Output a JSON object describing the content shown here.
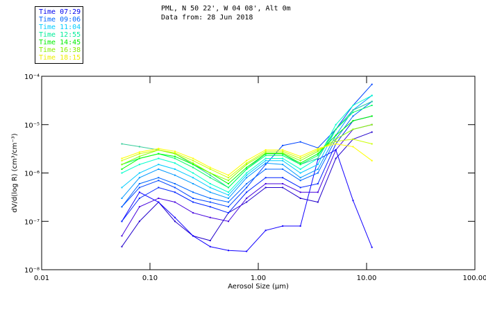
{
  "chart_data": {
    "type": "line",
    "title": [
      "PML, N 50 22', W 04 08', Alt 0m",
      "Data from: 28 Jun 2018"
    ],
    "xlabel": "Aerosol Size (µm)",
    "ylabel": "dV/d(log R) (cm³/cm⁻³)",
    "xscale": "log",
    "yscale": "log",
    "xlim": [
      0.01,
      100
    ],
    "ylim": [
      1e-08,
      0.0001
    ],
    "x_tick_labels": [
      "0.01",
      "0.10",
      "1.00",
      "10.00",
      "100.00"
    ],
    "x_ticks": [
      0.01,
      0.1,
      1,
      10,
      100
    ],
    "y_tick_labels": [
      "10⁻⁴",
      "10⁻⁵",
      "10⁻⁶",
      "10⁻⁷",
      "10⁻⁸"
    ],
    "y_ticks": [
      0.0001,
      1e-05,
      1e-06,
      1e-07,
      1e-08
    ],
    "legend": [
      {
        "label": "Time 07:29",
        "color": "#0000ee"
      },
      {
        "label": "Time 09:06",
        "color": "#0066ff"
      },
      {
        "label": "Time 11:04",
        "color": "#00ccff"
      },
      {
        "label": "Time 12:55",
        "color": "#00ee99"
      },
      {
        "label": "Time 14:45",
        "color": "#00ee00"
      },
      {
        "label": "Time 16:38",
        "color": "#88ee00"
      },
      {
        "label": "Time 18:15",
        "color": "#eeee00"
      }
    ],
    "legend_position": "top-left outside",
    "x": [
      0.055,
      0.08,
      0.12,
      0.17,
      0.25,
      0.36,
      0.53,
      0.78,
      1.17,
      1.68,
      2.45,
      3.55,
      5.2,
      7.5,
      11.2
    ],
    "series": [
      {
        "color": "#2200cc",
        "values": [
          3e-08,
          1e-07,
          2.5e-07,
          1e-07,
          5e-08,
          4e-08,
          1.5e-07,
          2.5e-07,
          5e-07,
          5e-07,
          3e-07,
          2.5e-07,
          2e-06,
          5e-06,
          7e-06
        ]
      },
      {
        "color": "#4400dd",
        "values": [
          5e-08,
          2e-07,
          3e-07,
          2.5e-07,
          1.5e-07,
          1.2e-07,
          1e-07,
          3e-07,
          6e-07,
          6e-07,
          4e-07,
          4e-07,
          3e-06,
          8e-06,
          1e-05
        ]
      },
      {
        "color": "#1100ff",
        "values": [
          1e-07,
          4e-07,
          2.5e-07,
          1.2e-07,
          5e-08,
          3e-08,
          2.5e-08,
          2.4e-08,
          6.5e-08,
          8e-08,
          8e-08,
          1.9e-06,
          3e-06,
          2.7e-07,
          2.9e-08
        ]
      },
      {
        "color": "#0022ff",
        "values": [
          1e-07,
          3e-07,
          5e-07,
          4e-07,
          2.5e-07,
          2e-07,
          1.5e-07,
          4e-07,
          8e-07,
          8e-07,
          5e-07,
          6e-07,
          4e-06,
          1.2e-05,
          1.5e-05
        ]
      },
      {
        "color": "#0044ff",
        "values": [
          2e-07,
          5e-07,
          7e-07,
          5e-07,
          3e-07,
          2.5e-07,
          2e-07,
          5e-07,
          1.5e-06,
          3.7e-06,
          4.4e-06,
          3.3e-06,
          8e-06,
          2.5e-05,
          6.8e-05
        ]
      },
      {
        "color": "#0066ff",
        "values": [
          2e-07,
          6e-07,
          8e-07,
          6e-07,
          4e-07,
          3e-07,
          2.5e-07,
          6e-07,
          1.2e-06,
          1.2e-06,
          7e-07,
          1e-06,
          5e-06,
          1.5e-05,
          3e-05
        ]
      },
      {
        "color": "#0099ff",
        "values": [
          3e-07,
          8e-07,
          1.2e-06,
          9e-07,
          6e-07,
          4e-07,
          3e-07,
          8e-07,
          1.6e-06,
          1.5e-06,
          8e-07,
          1.2e-06,
          6e-06,
          2e-05,
          4e-05
        ]
      },
      {
        "color": "#00ccff",
        "values": [
          5e-07,
          1e-06,
          1.5e-06,
          1.2e-06,
          8e-07,
          5e-07,
          3.5e-07,
          9e-07,
          1.8e-06,
          1.8e-06,
          1e-06,
          1.5e-06,
          8e-06,
          2e-05,
          3e-05
        ]
      },
      {
        "color": "#00ffcc",
        "values": [
          1e-06,
          1.5e-06,
          2e-06,
          1.6e-06,
          1e-06,
          6e-07,
          4e-07,
          1e-06,
          2e-06,
          2e-06,
          1.2e-06,
          2e-06,
          1e-05,
          2.5e-05,
          4e-05
        ]
      },
      {
        "color": "#33cc99",
        "values": [
          4e-06,
          3.5e-06,
          3e-06,
          2.5e-06,
          1.5e-06,
          9e-07,
          5e-07,
          1.2e-06,
          2.5e-06,
          2.5e-06,
          1.5e-06,
          2e-06,
          8e-06,
          2e-05,
          3e-05
        ]
      },
      {
        "color": "#00ff66",
        "values": [
          1.5e-06,
          2e-06,
          2.5e-06,
          2e-06,
          1.3e-06,
          8e-07,
          5e-07,
          1.2e-06,
          2.3e-06,
          2.3e-06,
          1.5e-06,
          2.3e-06,
          8e-06,
          1.8e-05,
          2.5e-05
        ]
      },
      {
        "color": "#00ff00",
        "values": [
          1.2e-06,
          2e-06,
          2.5e-06,
          2.2e-06,
          1.5e-06,
          1e-06,
          6e-07,
          1.3e-06,
          2.5e-06,
          2.5e-06,
          1.6e-06,
          2.5e-06,
          6e-06,
          1.2e-05,
          1.5e-05
        ]
      },
      {
        "color": "#88ff00",
        "values": [
          1.5e-06,
          2.2e-06,
          3e-06,
          2.5e-06,
          1.6e-06,
          1e-06,
          7e-07,
          1.5e-06,
          2.6e-06,
          2.6e-06,
          1.8e-06,
          2.8e-06,
          5e-06,
          8e-06,
          1e-05
        ]
      },
      {
        "color": "#ccff00",
        "values": [
          1.8e-06,
          2.5e-06,
          3e-06,
          2.6e-06,
          1.8e-06,
          1.2e-06,
          8e-07,
          1.6e-06,
          2.8e-06,
          2.8e-06,
          2e-06,
          3e-06,
          4.5e-06,
          5e-06,
          4e-06
        ]
      },
      {
        "color": "#ffff00",
        "values": [
          2e-06,
          2.7e-06,
          3.2e-06,
          2.8e-06,
          2e-06,
          1.3e-06,
          9e-07,
          1.8e-06,
          3e-06,
          3e-06,
          2.2e-06,
          3.2e-06,
          4e-06,
          3.5e-06,
          1.8e-06
        ]
      }
    ]
  }
}
